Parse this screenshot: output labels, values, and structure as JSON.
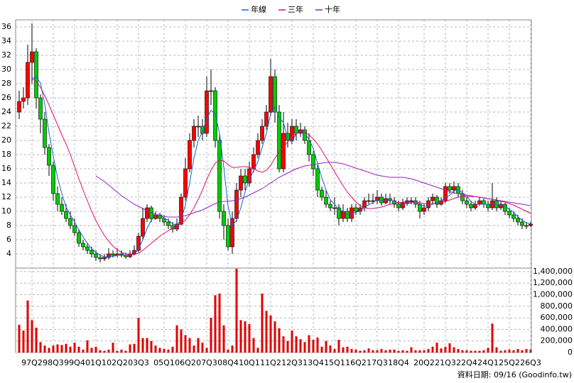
{
  "chart_data": {
    "type": "candlestick",
    "legend": "top",
    "grid": true,
    "footer": "資料日期: 09/16 (Goodinfo.tw)",
    "categories": [
      null,
      null,
      null,
      "97Q2",
      null,
      null,
      null,
      null,
      "98Q3",
      null,
      null,
      null,
      null,
      "99Q4",
      null,
      null,
      null,
      null,
      "01Q1",
      null,
      null,
      null,
      null,
      "02Q2",
      null,
      null,
      null,
      null,
      "03Q3",
      null,
      null,
      null,
      null,
      null,
      "05Q1",
      null,
      null,
      null,
      null,
      "06Q2",
      null,
      null,
      null,
      null,
      "07Q3",
      null,
      null,
      null,
      null,
      "08Q4",
      null,
      null,
      null,
      null,
      "10Q1",
      null,
      null,
      null,
      null,
      "11Q2",
      null,
      null,
      null,
      null,
      "12Q3",
      null,
      null,
      null,
      null,
      "13Q4",
      null,
      null,
      null,
      null,
      "15Q1",
      null,
      null,
      null,
      null,
      "16Q2",
      null,
      null,
      null,
      null,
      "17Q3",
      null,
      null,
      null,
      null,
      "18Q4",
      null,
      null,
      null,
      null,
      null,
      "20Q2",
      null,
      null,
      null,
      null,
      "21Q3",
      null,
      null,
      null,
      null,
      "22Q4",
      null,
      null,
      null,
      null,
      "24Q1",
      null,
      null,
      null,
      null,
      "25Q2",
      null,
      null,
      null,
      null,
      "26Q3"
    ],
    "open": [
      24,
      25.5,
      26,
      31,
      32.5,
      26,
      23,
      19,
      16.5,
      12.5,
      11,
      10,
      9,
      8,
      7,
      5.5,
      5,
      4.5,
      4,
      3.5,
      3.3,
      3.5,
      4,
      3.8,
      4,
      3.8,
      3.6,
      4,
      4.5,
      6.5,
      9,
      10.5,
      9,
      9.5,
      9,
      8.5,
      8,
      7.5,
      8.2,
      12,
      16,
      20,
      22,
      22,
      21,
      27,
      27,
      20,
      10,
      8,
      5,
      9,
      13,
      15,
      14,
      16,
      18,
      20,
      22,
      24,
      29,
      24,
      16,
      21,
      20,
      22,
      21,
      21.5,
      20,
      18,
      16,
      13,
      12,
      11,
      10.5,
      10.5,
      9,
      10,
      9,
      10.5,
      10,
      10.5,
      11.5,
      11.5,
      11.5,
      12,
      11.2,
      11.8,
      11.5,
      11,
      10.5,
      11.2,
      11.5,
      11.5,
      11,
      10,
      10.5,
      11.5,
      12,
      11,
      11.5,
      13.5,
      13,
      13.5,
      12.5,
      11.5,
      11,
      10.5,
      11,
      11.5,
      11,
      10.5,
      11.5,
      10.5,
      11,
      10,
      9.5,
      9,
      8.5,
      8,
      8
    ],
    "high": [
      27,
      27.5,
      33.5,
      36.5,
      33,
      26.5,
      24,
      19.5,
      17,
      13.5,
      12,
      11,
      10,
      9,
      7.5,
      6,
      5.5,
      5,
      4.5,
      4,
      4,
      4.8,
      4.5,
      4.8,
      4.5,
      4.2,
      4.5,
      5.2,
      7,
      10.5,
      11,
      10.8,
      10,
      9.8,
      9.5,
      9,
      8.5,
      9,
      12.5,
      17.5,
      21,
      23,
      23.5,
      23,
      29,
      30,
      27.5,
      21,
      11,
      9,
      10,
      14,
      16,
      16,
      17,
      19,
      21,
      23,
      25,
      31.5,
      30,
      25,
      24,
      22.5,
      23,
      23,
      22.5,
      22,
      21,
      18.5,
      16.5,
      13.5,
      13,
      11.5,
      12,
      11,
      11,
      10.5,
      11,
      11,
      11,
      12,
      12.5,
      12.5,
      13,
      12.5,
      12.5,
      12.5,
      12,
      11.5,
      11.8,
      12,
      12,
      12,
      11.5,
      11,
      12,
      12.5,
      12.3,
      12,
      14,
      14,
      14.2,
      14,
      13,
      12,
      11.5,
      11.5,
      12,
      11.8,
      11.5,
      14,
      12,
      11.5,
      11.2,
      10.5,
      10,
      9.5,
      9,
      8.5,
      8.5
    ],
    "low": [
      23,
      24.5,
      25,
      28,
      24.5,
      21,
      18,
      15,
      11.5,
      10,
      9.5,
      8.5,
      7.5,
      6.5,
      5,
      4.5,
      4,
      3.5,
      3,
      2.8,
      3,
      3.2,
      3.5,
      3.5,
      3.5,
      3.3,
      3.4,
      3.8,
      4.2,
      6,
      8.5,
      8.5,
      8.8,
      8.5,
      8,
      7.5,
      7,
      7.2,
      8,
      11.5,
      15.5,
      19,
      20.5,
      20,
      20.5,
      25,
      19,
      9,
      6,
      4.5,
      4,
      8.5,
      12,
      13,
      13.5,
      15.5,
      17.5,
      19.5,
      21.5,
      23.5,
      22.5,
      15.5,
      15.5,
      19,
      19.5,
      20,
      20.5,
      19.5,
      17,
      15,
      12,
      11.5,
      10.5,
      10,
      9.5,
      8,
      8.5,
      8.5,
      8.5,
      9.5,
      9.5,
      10,
      11,
      11,
      11,
      10.8,
      11,
      11,
      10.5,
      10,
      10.2,
      10.8,
      11,
      10.5,
      9,
      9.5,
      10,
      11,
      10.5,
      10.8,
      11.2,
      12.5,
      12.5,
      12,
      11,
      10.5,
      10,
      10.2,
      10.8,
      10.5,
      10,
      10.2,
      10,
      10.2,
      9.5,
      9,
      8.5,
      8,
      7.5,
      7.5,
      7.8
    ],
    "close": [
      25.5,
      26,
      31,
      32.5,
      26,
      23,
      19,
      16.5,
      12.5,
      11,
      10,
      9,
      8,
      7,
      5.5,
      5,
      4.5,
      4,
      3.5,
      3.3,
      3.5,
      4,
      3.8,
      4,
      3.8,
      3.6,
      4,
      4.5,
      6.5,
      9,
      10.5,
      9,
      9.5,
      9,
      8.5,
      8,
      7.5,
      8.2,
      12,
      16,
      20,
      22,
      22,
      21,
      27,
      27,
      20,
      10,
      8,
      5,
      9,
      13,
      15,
      14,
      16,
      18,
      20,
      22,
      24,
      29,
      24,
      16,
      21,
      20,
      22,
      21,
      21.5,
      20,
      18,
      16,
      13,
      12,
      11,
      10.5,
      10.5,
      9,
      10,
      9,
      10.5,
      10,
      10.5,
      11.5,
      11.5,
      11.5,
      12,
      11.2,
      11.8,
      11.5,
      11,
      10.5,
      11.2,
      11.5,
      11.5,
      11,
      10,
      10.5,
      11.5,
      12,
      11,
      11.5,
      13.5,
      13,
      13.5,
      12.5,
      11.5,
      11,
      10.5,
      11,
      11.5,
      11,
      10.5,
      11.5,
      10.5,
      11,
      10,
      9.5,
      9,
      8.5,
      8,
      8,
      8.2
    ],
    "up_color": "#ff0000",
    "down_color": "#00cc00",
    "series": [
      {
        "name": "年線",
        "color": "#1565d8",
        "values": [
          null,
          null,
          null,
          28.75,
          28.9,
          28.1,
          25.1,
          21.1,
          17.75,
          14.75,
          12.5,
          10.6,
          9.5,
          8.5,
          7.4,
          6.4,
          5.5,
          4.75,
          4.25,
          3.8,
          3.6,
          3.6,
          3.65,
          3.8,
          3.9,
          3.8,
          3.85,
          4,
          4.65,
          6,
          7.6,
          8.75,
          9.5,
          9.5,
          9,
          8.75,
          8.25,
          8.05,
          8.9,
          10.9,
          14.05,
          17.5,
          20,
          21.25,
          23,
          24.25,
          23.75,
          21,
          16.25,
          10.75,
          8,
          8.75,
          10.5,
          12.75,
          14.5,
          15.75,
          17,
          19,
          21,
          23.75,
          24.75,
          23.25,
          22.5,
          20.25,
          19.75,
          21,
          21.1,
          21.1,
          20.1,
          18.9,
          16.75,
          14.75,
          13,
          11.6,
          11,
          10.25,
          10,
          9.6,
          9.6,
          9.9,
          10,
          10.6,
          10.9,
          11.25,
          11.6,
          11.55,
          11.6,
          11.6,
          11.4,
          11.2,
          11.05,
          11.05,
          11.2,
          11.3,
          11,
          10.75,
          10.75,
          11,
          11.25,
          11.5,
          12,
          12.25,
          12.9,
          13.1,
          12.6,
          12.1,
          11.4,
          11,
          11,
          11,
          11,
          11.1,
          10.9,
          10.9,
          10.75,
          10.25,
          9.9,
          9.25,
          8.75,
          8.4,
          8.2
        ]
      },
      {
        "name": "三年",
        "color": "#e0106a",
        "values": [
          null,
          null,
          null,
          28.7,
          28.3,
          27.5,
          26.3,
          25,
          23.6,
          22.2,
          20.8,
          19.5,
          18,
          16.3,
          14.6,
          13,
          11.5,
          10,
          8.7,
          7.6,
          6.6,
          5.8,
          5.1,
          4.6,
          4.2,
          4,
          3.9,
          3.9,
          4.1,
          4.5,
          5,
          5.5,
          6,
          6.5,
          6.9,
          7.3,
          7.6,
          7.9,
          8.3,
          8.8,
          9.5,
          10.5,
          11.7,
          13,
          14.5,
          15.8,
          16.8,
          17.2,
          17.1,
          16.6,
          16.2,
          16.2,
          16.3,
          16.3,
          16.2,
          16,
          15.7,
          15.5,
          15.8,
          16.5,
          17.5,
          18.3,
          19,
          19.8,
          20.5,
          21,
          21.3,
          21.2,
          20.8,
          20.2,
          19.5,
          18.6,
          17.6,
          16.6,
          15.6,
          14.6,
          13.6,
          12.7,
          12,
          11.3,
          10.8,
          10.5,
          10.4,
          10.4,
          10.5,
          10.6,
          10.8,
          11,
          11.1,
          11.2,
          11.3,
          11.3,
          11.3,
          11.3,
          11.2,
          11.1,
          11.1,
          11.1,
          11.1,
          11.2,
          11.4,
          11.6,
          11.8,
          12,
          12.1,
          12.1,
          12.1,
          12.1,
          12,
          11.9,
          11.8,
          11.7,
          11.6,
          11.4,
          11.3,
          11.1,
          10.9,
          10.6,
          10.3,
          10,
          9.7
        ]
      },
      {
        "name": "十年",
        "color": "#9a20c8",
        "values": [
          null,
          null,
          null,
          null,
          null,
          null,
          null,
          null,
          null,
          null,
          null,
          null,
          null,
          null,
          null,
          null,
          null,
          null,
          15,
          14.6,
          14.2,
          13.7,
          13.2,
          12.7,
          12.2,
          11.8,
          11.4,
          11,
          10.7,
          10.4,
          10.1,
          9.8,
          9.6,
          9.4,
          9.3,
          9.2,
          9.2,
          9.2,
          9.3,
          9.4,
          9.6,
          9.8,
          10,
          10.2,
          10.5,
          10.8,
          11.1,
          11.3,
          11.4,
          11.4,
          11.5,
          11.6,
          11.8,
          12,
          12.3,
          12.6,
          12.9,
          13.2,
          13.6,
          14,
          14.4,
          14.8,
          15.1,
          15.4,
          15.7,
          16,
          16.2,
          16.4,
          16.5,
          16.6,
          16.7,
          16.8,
          16.9,
          16.9,
          16.9,
          16.8,
          16.7,
          16.5,
          16.3,
          16.1,
          15.9,
          15.7,
          15.5,
          15.3,
          15.1,
          15,
          14.9,
          14.8,
          14.8,
          14.8,
          14.8,
          14.7,
          14.6,
          14.4,
          14.2,
          14,
          13.8,
          13.6,
          13.4,
          13.2,
          13,
          12.8,
          12.6,
          12.5,
          12.4,
          12.3,
          12.2,
          12.1,
          12,
          11.9,
          11.8,
          11.7,
          11.6,
          11.5,
          11.4,
          11.3,
          11.2,
          11.1,
          11,
          10.9,
          10.8
        ]
      }
    ],
    "ylim": [
      2,
      37
    ],
    "yticks": [
      4,
      6,
      8,
      10,
      12,
      14,
      16,
      18,
      20,
      22,
      24,
      26,
      28,
      30,
      32,
      34,
      36
    ],
    "volume": {
      "color": "#e00000",
      "values": [
        480000,
        380000,
        900000,
        560000,
        430000,
        180000,
        120000,
        80000,
        120000,
        140000,
        130000,
        150000,
        100000,
        170000,
        100000,
        50000,
        210000,
        80000,
        100000,
        40000,
        30000,
        50000,
        170000,
        30000,
        50000,
        30000,
        140000,
        150000,
        600000,
        250000,
        250000,
        200000,
        120000,
        80000,
        60000,
        50000,
        100000,
        470000,
        400000,
        300000,
        250000,
        120000,
        250000,
        170000,
        80000,
        600000,
        990000,
        1020000,
        470000,
        50000,
        120000,
        1450000,
        560000,
        540000,
        490000,
        250000,
        80000,
        1020000,
        720000,
        640000,
        540000,
        420000,
        280000,
        200000,
        380000,
        280000,
        230000,
        180000,
        300000,
        220000,
        260000,
        100000,
        200000,
        120000,
        60000,
        220000,
        90000,
        100000,
        60000,
        50000,
        30000,
        40000,
        70000,
        40000,
        40000,
        60000,
        40000,
        50000,
        50000,
        30000,
        40000,
        30000,
        90000,
        40000,
        40000,
        40000,
        60000,
        100000,
        170000,
        70000,
        100000,
        160000,
        90000,
        60000,
        40000,
        40000,
        30000,
        30000,
        30000,
        40000,
        80000,
        500000,
        90000,
        30000,
        40000,
        50000,
        40000,
        60000,
        40000,
        60000,
        50000
      ],
      "ylim": [
        0,
        1460000
      ],
      "yticks": [
        0,
        {
          "value": 200000,
          "label": "200,000"
        },
        {
          "value": 400000,
          "label": "400,000"
        },
        {
          "value": 600000,
          "label": "600,000"
        },
        {
          "value": 800000,
          "label": "800,000"
        },
        {
          "value": 1000000,
          "label": "1,000,000"
        },
        {
          "value": 1200000,
          "label": "1,200,000"
        },
        {
          "value": 1400000,
          "label": "1,400,000"
        }
      ]
    }
  }
}
